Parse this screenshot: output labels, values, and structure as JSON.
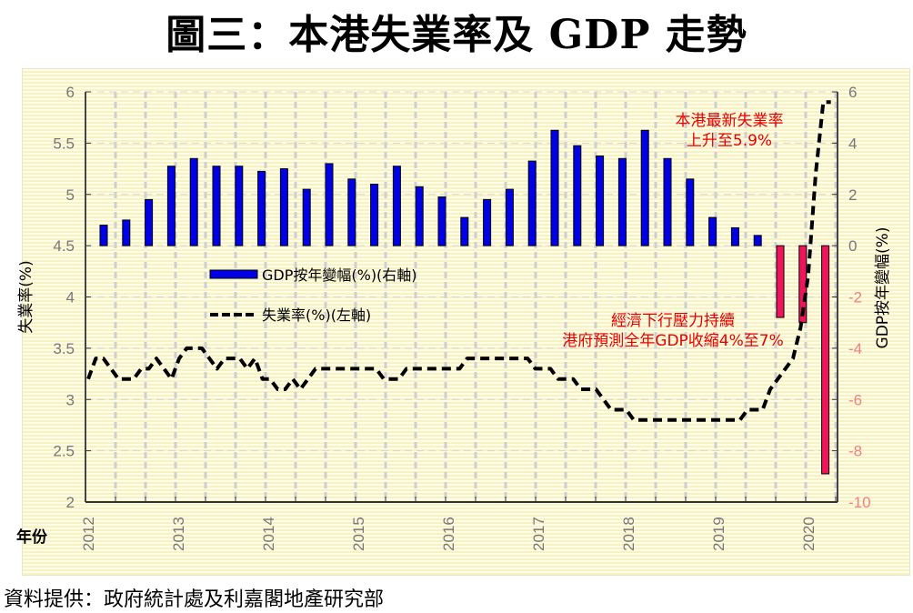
{
  "title": "圖三：本港失業率及 GDP 走勢",
  "source": "資料提供：政府統計處及利嘉閣地產研究部",
  "chart_data": {
    "type": "bar+line",
    "title": "圖三：本港失業率及 GDP 走勢",
    "xlabel": "年份",
    "ylabel_left": "失業率(%)",
    "ylabel_right": "GDP按年變幅(%)",
    "ylim_left": [
      2,
      6
    ],
    "ylim_right": [
      -10,
      6
    ],
    "yticks_left": [
      "2",
      "2.5",
      "3",
      "3.5",
      "4",
      "4.5",
      "5",
      "5.5",
      "6"
    ],
    "yticks_right": [
      "-10",
      "-8",
      "-6",
      "-4",
      "-2",
      "0",
      "2",
      "4",
      "6"
    ],
    "xticks": [
      "2012",
      "2013",
      "2014",
      "2015",
      "2016",
      "2017",
      "2018",
      "2019",
      "2020"
    ],
    "grid": true,
    "legend_placement": "center-left",
    "colors": {
      "gdp_positive": "#0000e6",
      "gdp_negative": "#f0145a",
      "unemployment": "#000000",
      "annotation": "#e60000",
      "right_negative_ticks": "#f08080"
    },
    "series": [
      {
        "name": "GDP按年變幅(%)(右軸)",
        "type": "bar",
        "axis": "right",
        "frequency": "quarterly",
        "start": "2012 Q1",
        "values": [
          0.8,
          1.0,
          1.8,
          3.1,
          3.4,
          3.1,
          3.1,
          2.9,
          3.0,
          2.2,
          3.2,
          2.6,
          2.4,
          3.1,
          2.3,
          1.9,
          1.1,
          1.8,
          2.2,
          3.3,
          4.5,
          3.9,
          3.5,
          3.4,
          4.5,
          3.4,
          2.6,
          1.1,
          0.7,
          0.4,
          -2.8,
          -3.0,
          -8.9
        ]
      },
      {
        "name": "失業率(%)(左軸)",
        "type": "line",
        "style": "dashed",
        "axis": "left",
        "frequency": "monthly",
        "start": "2012-01",
        "values": [
          3.2,
          3.4,
          3.4,
          3.3,
          3.2,
          3.2,
          3.2,
          3.3,
          3.3,
          3.4,
          3.3,
          3.2,
          3.4,
          3.5,
          3.5,
          3.5,
          3.4,
          3.3,
          3.4,
          3.4,
          3.4,
          3.3,
          3.4,
          3.2,
          3.2,
          3.1,
          3.1,
          3.2,
          3.1,
          3.2,
          3.3,
          3.3,
          3.3,
          3.3,
          3.3,
          3.3,
          3.3,
          3.3,
          3.3,
          3.2,
          3.2,
          3.2,
          3.3,
          3.3,
          3.3,
          3.3,
          3.3,
          3.3,
          3.3,
          3.3,
          3.4,
          3.4,
          3.4,
          3.4,
          3.4,
          3.4,
          3.4,
          3.4,
          3.4,
          3.3,
          3.3,
          3.3,
          3.2,
          3.2,
          3.2,
          3.1,
          3.1,
          3.1,
          3.0,
          2.9,
          2.9,
          2.9,
          2.8,
          2.8,
          2.8,
          2.8,
          2.8,
          2.8,
          2.8,
          2.8,
          2.8,
          2.8,
          2.8,
          2.8,
          2.8,
          2.8,
          2.8,
          2.9,
          2.9,
          2.9,
          3.1,
          3.2,
          3.3,
          3.4,
          3.7,
          4.2,
          5.2,
          5.9,
          5.9
        ]
      }
    ],
    "legend": [
      "GDP按年變幅(%)(右軸)",
      "失業率(%)(左軸)"
    ],
    "annotations": [
      {
        "lines": [
          "本港最新失業率",
          "上升至5.9%"
        ]
      },
      {
        "lines": [
          "經濟下行壓力持續",
          "港府預測全年GDP收縮4%至7%"
        ]
      }
    ]
  }
}
